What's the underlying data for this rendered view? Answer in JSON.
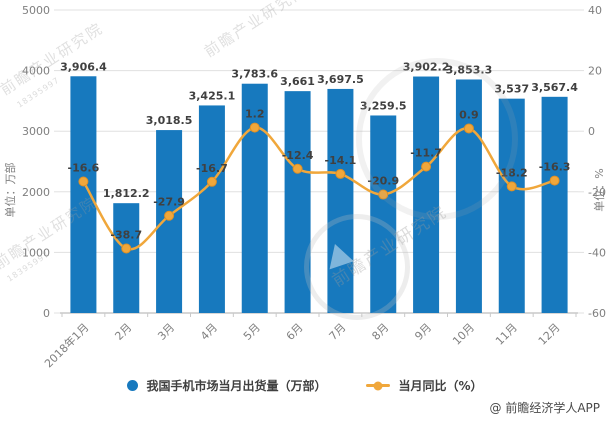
{
  "chart_data": {
    "type": "bar",
    "combo": "bar+line",
    "categories": [
      "2018年1月",
      "2月",
      "3月",
      "4月",
      "5月",
      "6月",
      "7月",
      "8月",
      "9月",
      "10月",
      "11月",
      "12月"
    ],
    "series": [
      {
        "name": "我国手机市场当月出货量（万部）",
        "type": "bar",
        "axis": "left",
        "color": "#1779be",
        "values": [
          3906.4,
          1812.2,
          3018.5,
          3425.1,
          3783.6,
          3661,
          3697.5,
          3259.5,
          3902.2,
          3853.3,
          3537,
          3567.4
        ],
        "labels": [
          "3,906.4",
          "1,812.2",
          "3,018.5",
          "3,425.1",
          "3,783.6",
          "3,661",
          "3,697.5",
          "3,259.5",
          "3,902.2",
          "3,853.3",
          "3,537",
          "3,567.4"
        ]
      },
      {
        "name": "当月同比（%）",
        "type": "line",
        "axis": "right",
        "color": "#f0a73b",
        "values": [
          -16.6,
          -38.7,
          -27.9,
          -16.7,
          1.2,
          -12.4,
          -14.1,
          -20.9,
          -11.7,
          0.9,
          -18.2,
          -16.3
        ],
        "labels": [
          "-16.6",
          "-38.7",
          "-27.9",
          "-16.7",
          "1.2",
          "-12.4",
          "-14.1",
          "-20.9",
          "-11.7",
          "0.9",
          "-18.2",
          "-16.3"
        ]
      }
    ],
    "left_axis": {
      "title": "单位：万部",
      "min": 0,
      "max": 5000,
      "ticks": [
        0,
        1000,
        2000,
        3000,
        4000,
        5000
      ]
    },
    "right_axis": {
      "title": "单位：%",
      "min": -60,
      "max": 40,
      "ticks": [
        -60,
        -40,
        -20,
        0,
        20,
        40
      ]
    },
    "grid": true,
    "legend_position": "bottom",
    "title": ""
  },
  "legend": {
    "shipments_label": "我国手机市场当月出货量（万部）",
    "yoy_label": "当月同比（%）",
    "shipments_color": "#1779be",
    "yoy_color": "#f0a73b"
  },
  "attribution": "@ 前瞻经济学人APP",
  "watermark": {
    "text": "前瞻产业研究院",
    "digits": "18395997"
  },
  "style_colors": {
    "bar": "#1779be",
    "line": "#f0a73b",
    "grid": "#e0e0e0",
    "axis_line": "#c9c9c9",
    "tick_label": "#7f7f7f",
    "data_label": "#404040"
  }
}
